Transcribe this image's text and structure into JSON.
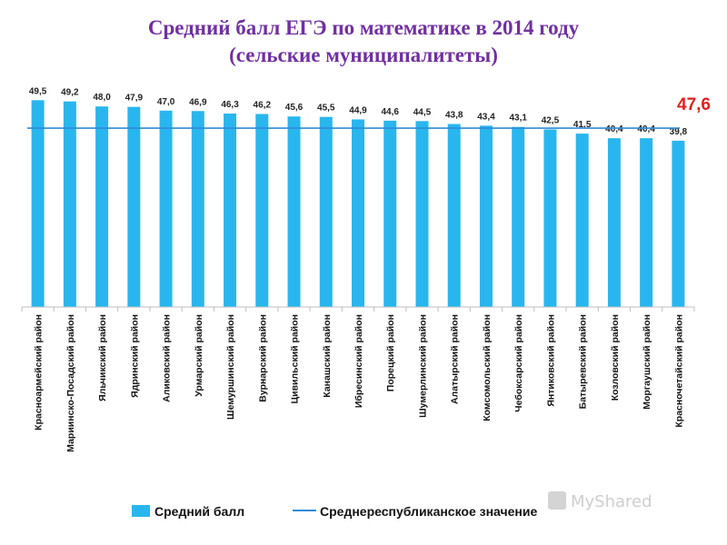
{
  "chart_data": {
    "type": "bar",
    "title": "Средний балл ЕГЭ по математике в 2014 году",
    "subtitle": "(сельские муниципалитеты)",
    "categories": [
      "Красноармейский район",
      "Мариинско-Посадский район",
      "Яльчикский район",
      "Ядринский район",
      "Аликовский район",
      "Урмарский район",
      "Шемуршинский район",
      "Вурнарский район",
      "Цивильский район",
      "Канашский район",
      "Ибресинский район",
      "Порецкий район",
      "Шумерлинский район",
      "Алатырский район",
      "Комсомольский район",
      "Чебоксарский район",
      "Янтиковский район",
      "Батыревский район",
      "Козловский район",
      "Моргаушский район",
      "Красночетайский район"
    ],
    "series": [
      {
        "name": "Средний балл",
        "values": [
          49.5,
          49.2,
          48.0,
          47.9,
          47.0,
          46.9,
          46.3,
          46.2,
          45.6,
          45.5,
          44.9,
          44.6,
          44.5,
          43.8,
          43.4,
          43.1,
          42.5,
          41.5,
          40.4,
          40.4,
          39.8
        ],
        "labels": [
          "49,5",
          "49,2",
          "48,0",
          "47,9",
          "47,0",
          "46,9",
          "46,3",
          "46,2",
          "45,6",
          "45,5",
          "44,9",
          "44,6",
          "44,5",
          "43,8",
          "43,4",
          "43,1",
          "42,5",
          "41,5",
          "40,4",
          "40,4",
          "39,8"
        ],
        "color": "#29b6ee"
      }
    ],
    "reference_line": {
      "name": "Среднереспубликанское значение",
      "value": 47.6,
      "label": "47,6",
      "color": "#2e8bd8",
      "label_color": "#e0201c"
    },
    "ylim": [
      0,
      50
    ],
    "grid": false,
    "legend": "bottom"
  },
  "watermark": "MyShared"
}
